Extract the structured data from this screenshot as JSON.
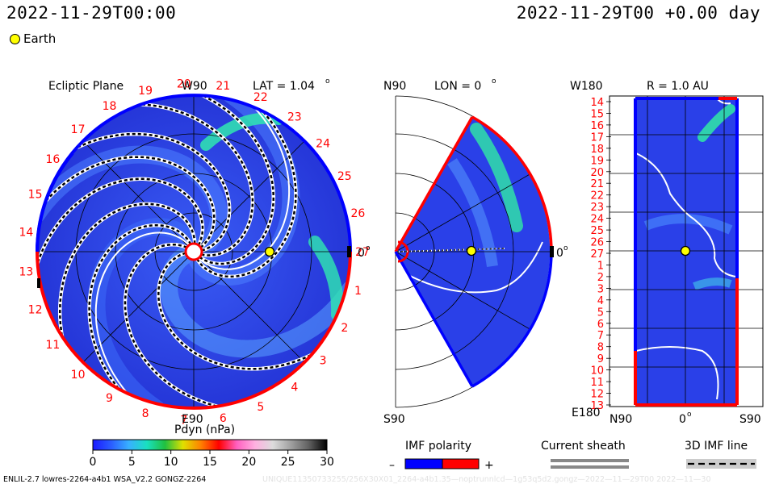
{
  "header": {
    "timestamp_left": "2022-11-29T00:00",
    "timestamp_right": "2022-11-29T00 +0.00 day",
    "legend_earth": "Earth"
  },
  "panels": {
    "ecliptic": {
      "title": "Ecliptic Plane",
      "lat_label": "LAT = 1.04",
      "lat_sup": "o",
      "top_label": "W90",
      "bottom_label": "E90",
      "right_label": "0",
      "right_sup": "o",
      "numbers": [
        "1",
        "2",
        "3",
        "4",
        "5",
        "6",
        "7",
        "8",
        "9",
        "10",
        "11",
        "12",
        "13",
        "14",
        "15",
        "16",
        "17",
        "18",
        "19",
        "20",
        "21",
        "22",
        "23",
        "24",
        "25",
        "26",
        "27"
      ]
    },
    "meridional": {
      "title": "LON = 0",
      "title_sup": "o",
      "top_label": "N90",
      "bottom_label": "S90",
      "right_label": "0",
      "right_sup": "o"
    },
    "sphere": {
      "title": "R = 1.0 AU",
      "top_left_label": "W180",
      "bottom_left_label": "E180",
      "x_labels": [
        "N90",
        "0",
        "S90"
      ],
      "x_sup": "o",
      "y_labels": [
        "14",
        "15",
        "16",
        "17",
        "18",
        "19",
        "20",
        "21",
        "22",
        "23",
        "24",
        "25",
        "26",
        "27",
        "1",
        "2",
        "3",
        "4",
        "5",
        "6",
        "7",
        "8",
        "9",
        "10",
        "11",
        "12",
        "13"
      ]
    }
  },
  "colorbar": {
    "label": "Pdyn (nPa)",
    "ticks": [
      "0",
      "5",
      "10",
      "15",
      "20",
      "25",
      "30"
    ],
    "stops": [
      "#1a1aff",
      "#2a5cff",
      "#38b0ff",
      "#19e0c0",
      "#20c040",
      "#e0e000",
      "#ff8000",
      "#ff0000",
      "#ff60c0",
      "#ffb0e0",
      "#dcdcdc",
      "#a0a0a0",
      "#606060",
      "#000000"
    ]
  },
  "legends": {
    "imf_polarity": {
      "label": "IMF polarity",
      "minus": "–",
      "plus": "+"
    },
    "current_sheath": {
      "label": "Current sheath"
    },
    "imf_line": {
      "label": "3D IMF line"
    }
  },
  "footer": {
    "model_info": "ENLIL-2.7 lowres-2264-a4b1 WSA_V2.2 GONGZ-2264",
    "watermark": "UNIQUE11350733255/256X30X01_2264-a4b1.35—noptrunnlcd—1g53q5d2.gongz—2022—11—29T00   2022—11—30"
  },
  "chart_data": {
    "type": "heatmap",
    "quantity": "Pdyn (nPa)",
    "colorbar_range": [
      0,
      30
    ],
    "colorbar_ticks": [
      0,
      5,
      10,
      15,
      20,
      25,
      30
    ],
    "earth": {
      "lat_deg": 1.04,
      "lon_deg": 0,
      "r_au": 1.0
    },
    "views": [
      "Ecliptic Plane",
      "LON = 0",
      "R = 1.0 AU"
    ],
    "colors": {
      "background_field": "#2a40e8",
      "enhanced": "#20d8a0",
      "positive_polarity": "#ff0000",
      "negative_polarity": "#0000ff",
      "earth": "#ffff00"
    }
  }
}
